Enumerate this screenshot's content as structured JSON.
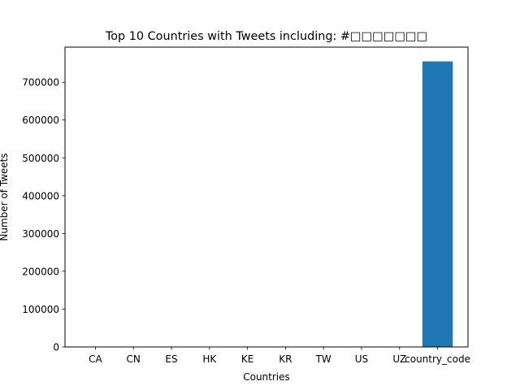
{
  "chart_data": {
    "type": "bar",
    "title": "Top 10 Countries with Tweets including: #□□□□□□□",
    "xlabel": "Countries",
    "ylabel": "Number of Tweets",
    "categories": [
      "CA",
      "CN",
      "ES",
      "HK",
      "KE",
      "KR",
      "TW",
      "US",
      "UZ",
      "country_code"
    ],
    "values": [
      1,
      1,
      1,
      1,
      1,
      1,
      1,
      1,
      1,
      755000
    ],
    "ylim": [
      0,
      792750
    ],
    "yticks": [
      0,
      100000,
      200000,
      300000,
      400000,
      500000,
      600000,
      700000
    ],
    "ytick_labels": [
      "0",
      "100000",
      "200000",
      "300000",
      "400000",
      "500000",
      "600000",
      "700000"
    ],
    "bar_color": "#1f77b4",
    "grid": false,
    "legend": "none"
  }
}
